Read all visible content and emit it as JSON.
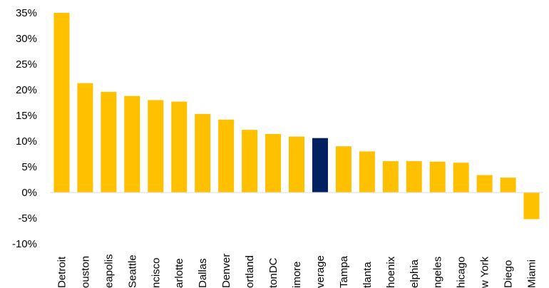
{
  "chart_data": {
    "type": "bar",
    "title": "",
    "xlabel": "",
    "ylabel": "",
    "ylim": [
      -10,
      35
    ],
    "y_ticks": [
      -10,
      -5,
      0,
      5,
      10,
      15,
      20,
      25,
      30,
      35
    ],
    "y_tick_labels": [
      "-10%",
      "-5%",
      "0%",
      "5%",
      "10%",
      "15%",
      "20%",
      "25%",
      "30%",
      "35%"
    ],
    "grid": false,
    "legend": "none",
    "categories": [
      "Detroit",
      "ouston",
      "eapolis",
      "Seattle",
      "ncisco",
      "arlotte",
      "Dallas",
      "Denver",
      "ortland",
      "tonDC",
      "imore",
      "verage",
      "Tampa",
      "tlanta",
      "hoenix",
      "elphia",
      "ngeles",
      "hicago",
      "w York",
      "Diego",
      "Miami"
    ],
    "values": [
      35,
      21.3,
      19.6,
      18.8,
      18.0,
      17.7,
      15.3,
      14.2,
      12.2,
      11.4,
      10.9,
      10.6,
      9.0,
      8.0,
      6.1,
      6.1,
      6.0,
      5.8,
      3.4,
      2.9,
      -5.2
    ],
    "highlight_index": 11,
    "colors": {
      "bar": "#FFC000",
      "highlight": "#002060",
      "axis": "#D9D9D9"
    }
  }
}
